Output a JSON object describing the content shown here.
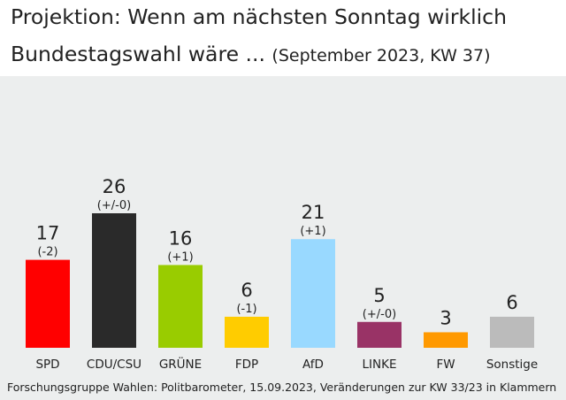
{
  "title_line1": "Projektion: Wenn am nächsten Sonntag wirklich",
  "title_line2": "Bundestagswahl wäre ...",
  "subtitle": "(September 2023, KW 37)",
  "source": "Forschungsgruppe Wahlen: Politbarometer, 15.09.2023, Veränderungen zur KW 33/23 in Klammern",
  "chart_data": {
    "type": "bar",
    "title": "Projektion: Wenn am nächsten Sonntag wirklich Bundestagswahl wäre ...",
    "subtitle": "(September 2023, KW 37)",
    "categories": [
      "SPD",
      "CDU/CSU",
      "GRÜNE",
      "FDP",
      "AfD",
      "LINKE",
      "FW",
      "Sonstige"
    ],
    "values": [
      17,
      26,
      16,
      6,
      21,
      5,
      3,
      6
    ],
    "changes": [
      "(-2)",
      "(+/-0)",
      "(+1)",
      "(-1)",
      "(+1)",
      "(+/-0)",
      "",
      ""
    ],
    "colors": [
      "#ff0000",
      "#2a2a2a",
      "#99cc00",
      "#ffcc00",
      "#99d9ff",
      "#993366",
      "#ff9900",
      "#bbbbbb"
    ],
    "ylim": [
      0,
      26
    ],
    "grid": false
  }
}
